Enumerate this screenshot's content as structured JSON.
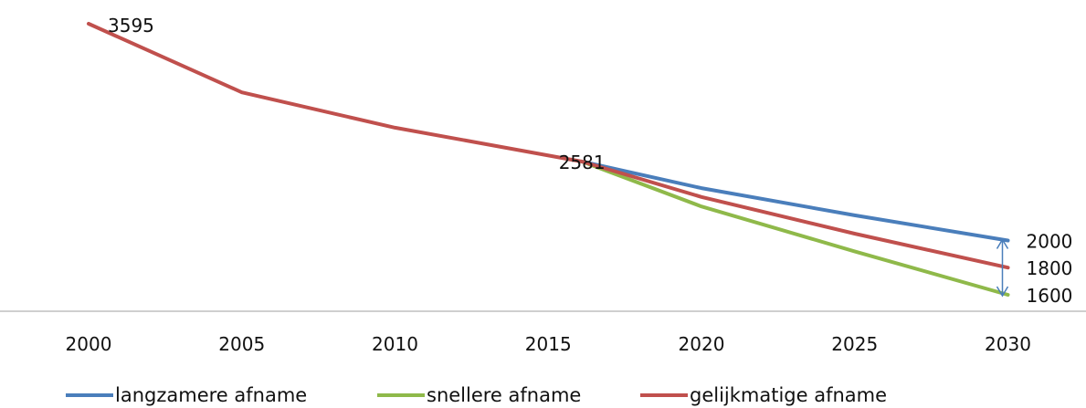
{
  "chart_data": {
    "type": "line",
    "title": "",
    "xlabel": "",
    "ylabel": "",
    "x": [
      2000,
      2005,
      2010,
      2015,
      2016,
      2020,
      2025,
      2030
    ],
    "xticks": [
      "2000",
      "2005",
      "2010",
      "2015",
      "2020",
      "2025",
      "2030"
    ],
    "ylim": [
      1500,
      3650
    ],
    "grid": false,
    "legend_position": "bottom",
    "series": [
      {
        "name": "langzamere afname",
        "color": "#4a7ebb",
        "points": [
          [
            2016.1,
            2581
          ],
          [
            2020,
            2385
          ],
          [
            2025,
            2185
          ],
          [
            2030,
            2000
          ]
        ]
      },
      {
        "name": "snellere afname",
        "color": "#8fb94a",
        "points": [
          [
            2016.1,
            2581
          ],
          [
            2020,
            2250
          ],
          [
            2025,
            1920
          ],
          [
            2030,
            1600
          ]
        ]
      },
      {
        "name": "gelijkmatige afname",
        "color": "#c0504d",
        "points": [
          [
            2000,
            3595
          ],
          [
            2005,
            3090
          ],
          [
            2010,
            2830
          ],
          [
            2016.1,
            2581
          ],
          [
            2020,
            2320
          ],
          [
            2025,
            2050
          ],
          [
            2030,
            1800
          ]
        ]
      }
    ],
    "data_labels": [
      {
        "text": "3595",
        "x": 2000,
        "y": 3595
      },
      {
        "text": "2581",
        "x": 2016.1,
        "y": 2581
      },
      {
        "text": "2000",
        "x": 2030,
        "y": 2000
      },
      {
        "text": "1800",
        "x": 2030,
        "y": 1800
      },
      {
        "text": "1600",
        "x": 2030,
        "y": 1600
      }
    ],
    "range_arrow": {
      "x": 2030,
      "from": 1600,
      "to": 2000,
      "color": "#4a7ebb"
    }
  }
}
